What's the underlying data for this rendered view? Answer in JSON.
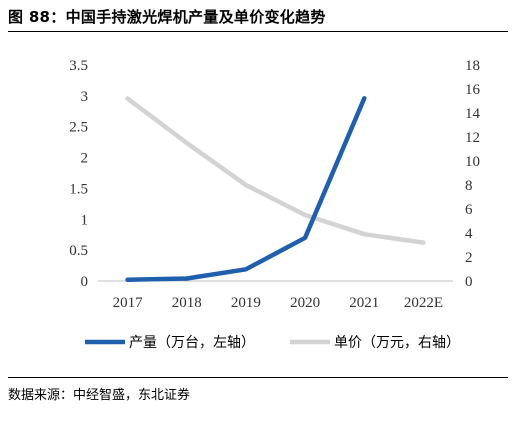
{
  "title": "图 88：中国手持激光焊机产量及单价变化趋势",
  "source": "数据来源：中经智盛，东北证券",
  "chart_data": {
    "type": "line",
    "categories": [
      "2017",
      "2018",
      "2019",
      "2020",
      "2021",
      "2022E"
    ],
    "series": [
      {
        "name": "产量（万台，左轴）",
        "axis": "left",
        "color": "#1F5FAD",
        "values": [
          0.02,
          0.04,
          0.19,
          0.7,
          2.96,
          null
        ]
      },
      {
        "name": "单价（万元，右轴）",
        "axis": "right",
        "color": "#D3D3D3",
        "values": [
          15.2,
          11.5,
          8.0,
          5.5,
          3.9,
          3.2
        ]
      }
    ],
    "y_left": {
      "range": [
        0,
        3.5
      ],
      "ticks": [
        "0",
        "0.5",
        "1",
        "1.5",
        "2",
        "2.5",
        "3",
        "3.5"
      ]
    },
    "y_right": {
      "range": [
        0,
        18
      ],
      "ticks": [
        "0",
        "2",
        "4",
        "6",
        "8",
        "10",
        "12",
        "14",
        "16",
        "18"
      ]
    },
    "grid": false,
    "legend": "bottom"
  }
}
